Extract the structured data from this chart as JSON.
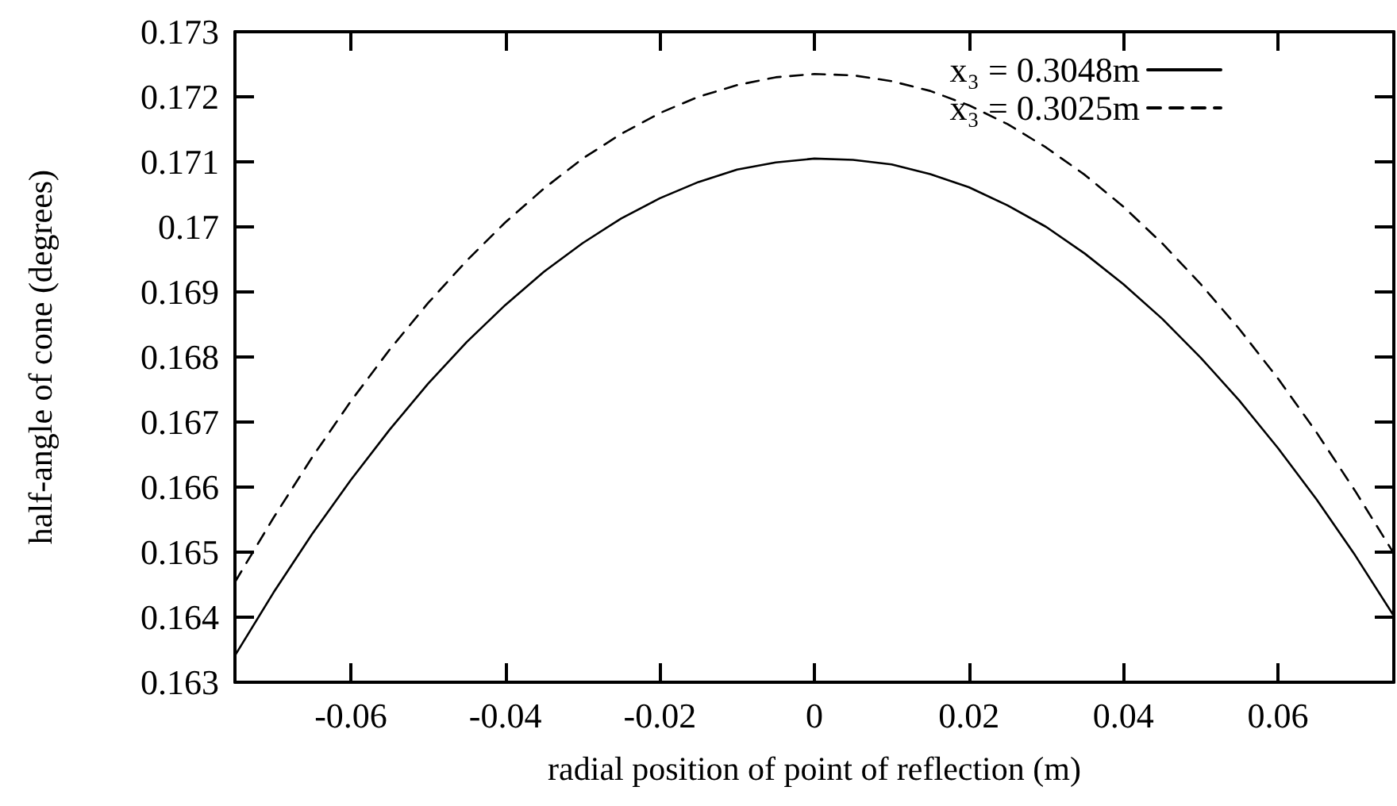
{
  "chart_data": {
    "type": "line",
    "xlabel": "radial position of point of reflection (m)",
    "ylabel": "half-angle of cone (degrees)",
    "x": [
      -0.075,
      -0.07,
      -0.065,
      -0.06,
      -0.055,
      -0.05,
      -0.045,
      -0.04,
      -0.035,
      -0.03,
      -0.025,
      -0.02,
      -0.015,
      -0.01,
      -0.005,
      0,
      0.005,
      0.01,
      0.015,
      0.02,
      0.025,
      0.03,
      0.035,
      0.04,
      0.045,
      0.05,
      0.055,
      0.06,
      0.065,
      0.07,
      0.075
    ],
    "series": [
      {
        "name": "x₃ = 0.3048m",
        "color": "#000000",
        "line_style": "solid",
        "values": [
          0.16341,
          0.16438,
          0.16528,
          0.16611,
          0.16688,
          0.16759,
          0.16823,
          0.1688,
          0.16931,
          0.16975,
          0.17013,
          0.17044,
          0.17069,
          0.17088,
          0.17099,
          0.17105,
          0.17103,
          0.17096,
          0.17081,
          0.17061,
          0.17033,
          0.17,
          0.16959,
          0.16912,
          0.16859,
          0.16799,
          0.16733,
          0.1666,
          0.16581,
          0.16495,
          0.16402
        ]
      },
      {
        "name": "x₃ = 0.3025m",
        "color": "#000000",
        "line_style": "dashed",
        "values": [
          0.16454,
          0.16553,
          0.16646,
          0.16732,
          0.16811,
          0.16883,
          0.16948,
          0.17007,
          0.17059,
          0.17105,
          0.17143,
          0.17175,
          0.172,
          0.17218,
          0.1723,
          0.17235,
          0.17233,
          0.17224,
          0.17209,
          0.17187,
          0.17158,
          0.17122,
          0.1708,
          0.17031,
          0.16975,
          0.16912,
          0.16843,
          0.16767,
          0.16684,
          0.16594,
          0.16498
        ]
      }
    ],
    "xlim": [
      -0.075,
      0.075
    ],
    "xticks": [
      -0.06,
      -0.04,
      -0.02,
      0,
      0.02,
      0.04,
      0.06
    ],
    "ylim": [
      0.163,
      0.173
    ],
    "yticks": [
      0.163,
      0.164,
      0.165,
      0.166,
      0.167,
      0.168,
      0.169,
      0.17,
      0.171,
      0.172,
      0.173
    ],
    "grid": false,
    "legend": "top right",
    "marker": "none"
  }
}
